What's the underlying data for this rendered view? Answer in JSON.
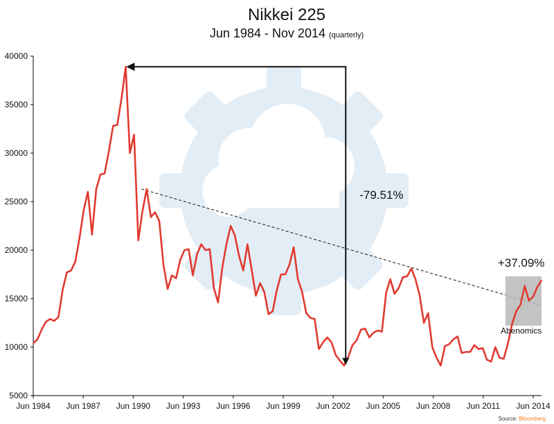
{
  "chart_data": {
    "type": "line",
    "title": "Nikkei 225",
    "subtitle": "Jun 1984 - Nov 2014",
    "subtitle_note": "(quarterly)",
    "xlabel": "",
    "ylabel": "",
    "xlim": [
      1984.42,
      2014.92
    ],
    "ylim": [
      5000,
      40000
    ],
    "yticks": [
      5000,
      10000,
      15000,
      20000,
      25000,
      30000,
      35000,
      40000
    ],
    "xticks": [
      {
        "label": "Jun 1984",
        "value": 1984.42
      },
      {
        "label": "Jun 1987",
        "value": 1987.42
      },
      {
        "label": "Jun 1990",
        "value": 1990.42
      },
      {
        "label": "Jun 1993",
        "value": 1993.42
      },
      {
        "label": "Jun 1996",
        "value": 1996.42
      },
      {
        "label": "Jun 1999",
        "value": 1999.42
      },
      {
        "label": "Jun 2002",
        "value": 2002.42
      },
      {
        "label": "Jun 2005",
        "value": 2005.42
      },
      {
        "label": "Jun 2008",
        "value": 2008.42
      },
      {
        "label": "Jun 2011",
        "value": 2011.42
      },
      {
        "label": "Jun 2014",
        "value": 2014.42
      }
    ],
    "series": [
      {
        "name": "Nikkei 225",
        "color": "#e03a2f",
        "values": [
          10400,
          10800,
          11800,
          12600,
          12900,
          12700,
          13100,
          15900,
          17700,
          17900,
          18800,
          21200,
          24100,
          26000,
          21600,
          26300,
          27800,
          27900,
          30200,
          32800,
          32900,
          35600,
          38900,
          30000,
          31900,
          21000,
          24000,
          26300,
          23400,
          23900,
          23000,
          18500,
          16000,
          17400,
          17100,
          19000,
          20000,
          20100,
          17400,
          19600,
          20600,
          20000,
          20100,
          16100,
          14600,
          18200,
          20600,
          22500,
          21500,
          19400,
          17900,
          20600,
          18000,
          15300,
          16600,
          15700,
          13400,
          13700,
          15900,
          17500,
          17500,
          18500,
          20300,
          17000,
          15700,
          13500,
          13000,
          12900,
          9800,
          10500,
          11000,
          10500,
          9200,
          8600,
          8100,
          9000,
          10200,
          10700,
          11800,
          11900,
          11000,
          11500,
          11700,
          11600,
          15600,
          17000,
          15500,
          16100,
          17200,
          17300,
          18100,
          17000,
          15300,
          12500,
          13500,
          10000,
          8900,
          8100,
          10100,
          10300,
          10800,
          11100,
          9400,
          9500,
          9500,
          10200,
          9800,
          9900,
          8700,
          8500,
          10000,
          8900,
          8800,
          10400,
          12400,
          13700,
          14400,
          16300,
          14800,
          15200,
          16200,
          16900
        ]
      }
    ],
    "reference_points": {
      "peak": {
        "x": 1989.92,
        "y": 38900
      },
      "trough": {
        "x": 2003.17,
        "y": 8100
      },
      "trend_start": {
        "x": 1990.92,
        "y": 26300
      },
      "trend_end": {
        "x": 2014.92,
        "y": 14300
      }
    },
    "annotations": [
      {
        "text": "-79.51%",
        "x": 2004.0,
        "y": 25300
      },
      {
        "text": "+37.09%",
        "x": 2013.7,
        "y": 18300
      },
      {
        "text": "Abenomics",
        "x": 2013.7,
        "y": 11400
      }
    ],
    "highlight_box": {
      "x0": 2012.75,
      "x1": 2014.92,
      "y0": 12200,
      "y1": 17300
    },
    "source_label": "Source:",
    "source_name": "Bloomberg",
    "colors": {
      "line": "#e03a2f",
      "source": "#f07a1f",
      "watermark": "#dde9f3",
      "box": "#b8b8b8"
    }
  }
}
